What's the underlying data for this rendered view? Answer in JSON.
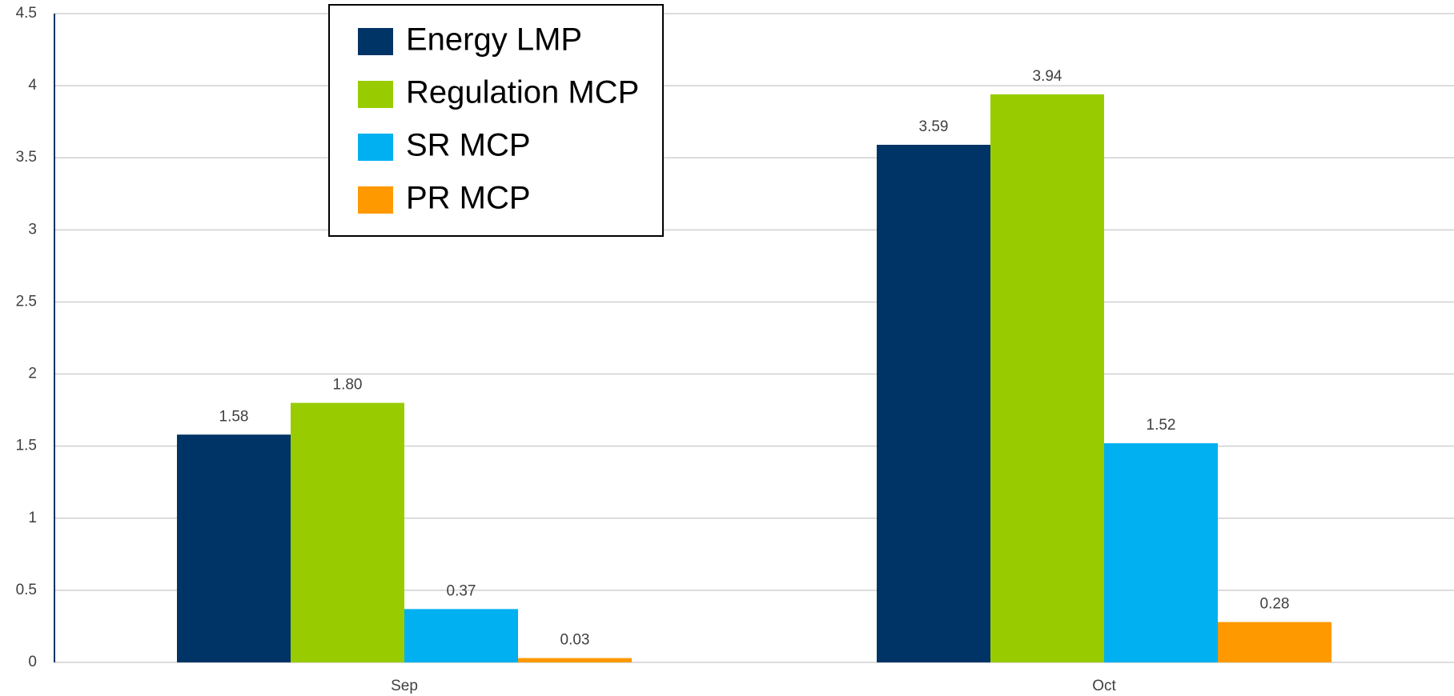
{
  "chart_data": {
    "type": "bar",
    "categories": [
      "Sep",
      "Oct"
    ],
    "series": [
      {
        "name": "Energy LMP",
        "color": "#003366",
        "values": [
          1.58,
          3.59
        ]
      },
      {
        "name": "Regulation MCP",
        "color": "#99cc00",
        "values": [
          1.8,
          3.94
        ],
        "value_labels": [
          "1.80",
          "3.94"
        ]
      },
      {
        "name": "SR MCP",
        "color": "#00b0f0",
        "values": [
          0.37,
          1.52
        ]
      },
      {
        "name": "PR MCP",
        "color": "#ff9900",
        "values": [
          0.03,
          0.28
        ]
      }
    ],
    "ylim": [
      0,
      4.5
    ],
    "yticks": [
      0,
      0.5,
      1,
      1.5,
      2,
      2.5,
      3,
      3.5,
      4,
      4.5
    ],
    "grid": true,
    "legend": "top-left"
  }
}
